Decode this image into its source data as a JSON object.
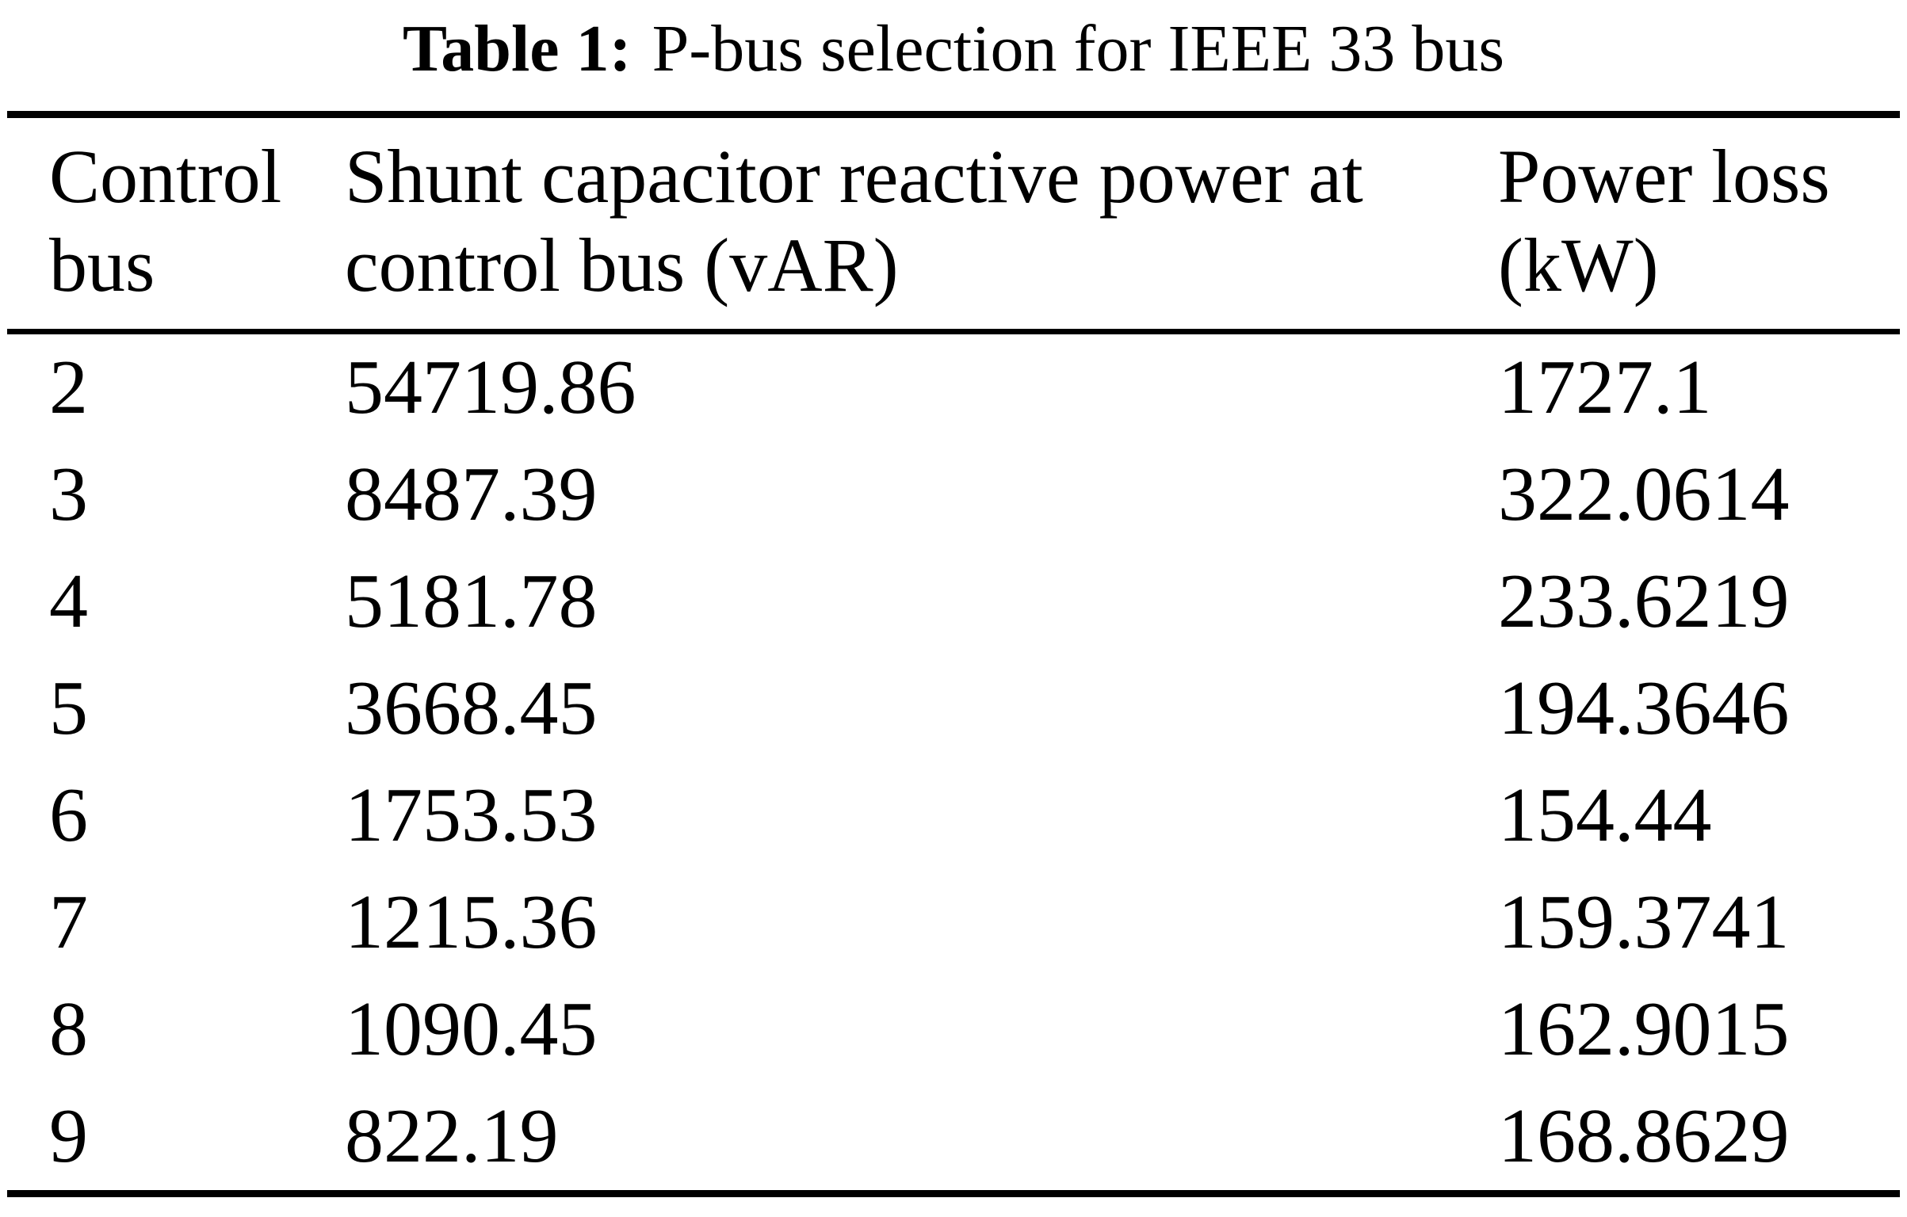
{
  "caption": {
    "label": "Table 1:",
    "title": "P-bus selection for IEEE 33 bus"
  },
  "table": {
    "columns": [
      {
        "label": "Control bus"
      },
      {
        "label": "Shunt capacitor reactive power at control bus (vAR)"
      },
      {
        "label": "Power loss (kW)"
      }
    ],
    "rows": [
      {
        "control_bus": "2",
        "shunt_q_var": "54719.86",
        "power_loss_kw": "1727.1"
      },
      {
        "control_bus": "3",
        "shunt_q_var": "8487.39",
        "power_loss_kw": "322.0614"
      },
      {
        "control_bus": "4",
        "shunt_q_var": "5181.78",
        "power_loss_kw": "233.6219"
      },
      {
        "control_bus": "5",
        "shunt_q_var": "3668.45",
        "power_loss_kw": "194.3646"
      },
      {
        "control_bus": "6",
        "shunt_q_var": "1753.53",
        "power_loss_kw": "154.44"
      },
      {
        "control_bus": "7",
        "shunt_q_var": "1215.36",
        "power_loss_kw": "159.3741"
      },
      {
        "control_bus": "8",
        "shunt_q_var": "1090.45",
        "power_loss_kw": "162.9015"
      },
      {
        "control_bus": "9",
        "shunt_q_var": "822.19",
        "power_loss_kw": "168.8629"
      }
    ]
  },
  "colors": {
    "text": "#000000",
    "background": "#ffffff",
    "rule": "#000000"
  },
  "chart_data": {
    "type": "table",
    "title": "Table 1: P-bus selection for IEEE 33 bus",
    "columns": [
      "Control bus",
      "Shunt capacitor reactive power at control bus (vAR)",
      "Power loss (kW)"
    ],
    "rows": [
      [
        2,
        54719.86,
        1727.1
      ],
      [
        3,
        8487.39,
        322.0614
      ],
      [
        4,
        5181.78,
        233.6219
      ],
      [
        5,
        3668.45,
        194.3646
      ],
      [
        6,
        1753.53,
        154.44
      ],
      [
        7,
        1215.36,
        159.3741
      ],
      [
        8,
        1090.45,
        162.9015
      ],
      [
        9,
        822.19,
        168.8629
      ]
    ]
  }
}
